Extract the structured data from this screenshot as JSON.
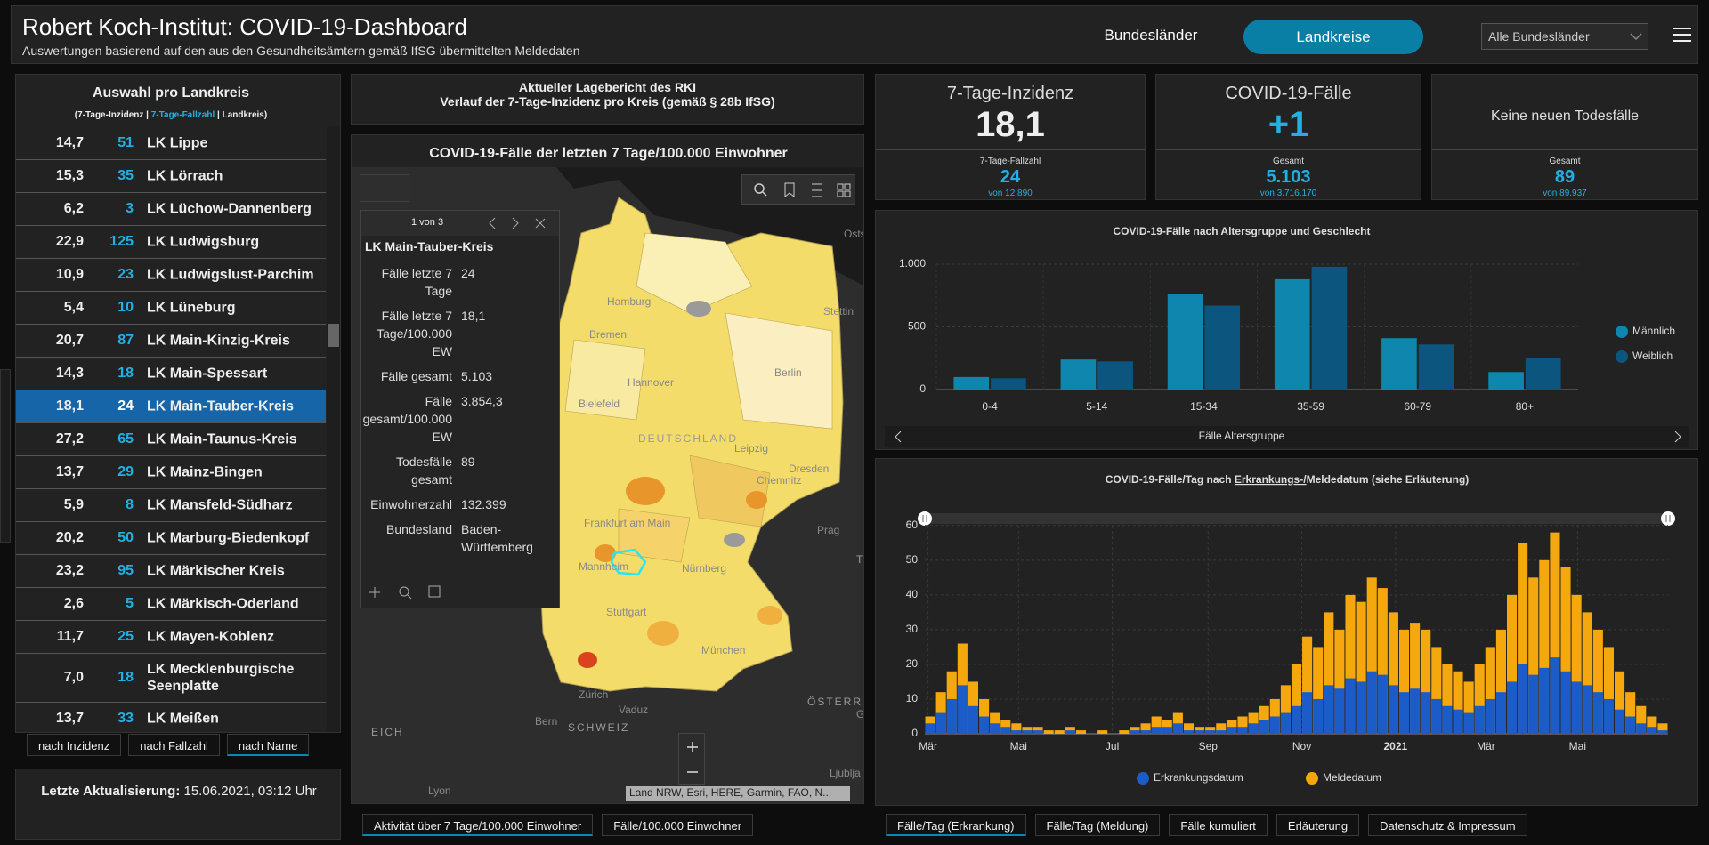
{
  "header": {
    "title": "Robert Koch-Institut: COVID-19-Dashboard",
    "subtitle": "Auswertungen basierend auf den aus den Gesundheitsämtern gemäß IfSG übermittelten Meldedaten",
    "nav": [
      "Bundesländer",
      "Landkreise"
    ],
    "dropdown": "Alle Bundesländer"
  },
  "list": {
    "title": "Auswahl pro Landkreis",
    "legend": [
      "(7-Tage-Inzidenz | ",
      "7-Tage-Fallzahl",
      " | Landkreis)"
    ],
    "selected": 8,
    "rows": [
      [
        "14,7",
        "51",
        "LK Lippe"
      ],
      [
        "15,3",
        "35",
        "LK Lörrach"
      ],
      [
        "6,2",
        "3",
        "LK Lüchow-Dannenberg"
      ],
      [
        "22,9",
        "125",
        "LK Ludwigsburg"
      ],
      [
        "10,9",
        "23",
        "LK Ludwigslust-Parchim"
      ],
      [
        "5,4",
        "10",
        "LK Lüneburg"
      ],
      [
        "20,7",
        "87",
        "LK Main-Kinzig-Kreis"
      ],
      [
        "14,3",
        "18",
        "LK Main-Spessart"
      ],
      [
        "18,1",
        "24",
        "LK Main-Tauber-Kreis"
      ],
      [
        "27,2",
        "65",
        "LK Main-Taunus-Kreis"
      ],
      [
        "13,7",
        "29",
        "LK Mainz-Bingen"
      ],
      [
        "5,9",
        "8",
        "LK Mansfeld-Südharz"
      ],
      [
        "20,2",
        "50",
        "LK Marburg-Biedenkopf"
      ],
      [
        "23,2",
        "95",
        "LK Märkischer Kreis"
      ],
      [
        "2,6",
        "5",
        "LK Märkisch-Oderland"
      ],
      [
        "11,7",
        "25",
        "LK Mayen-Koblenz"
      ],
      [
        "7,0",
        "18",
        "LK Mecklenburgische Seenplatte"
      ],
      [
        "13,7",
        "33",
        "LK Meißen"
      ]
    ],
    "sort_buttons": [
      "nach Inzidenz",
      "nach Fallzahl",
      "nach Name"
    ],
    "active_sort": 2,
    "update_label": "Letzte Aktualisierung:",
    "update_value": "15.06.2021, 03:12 Uhr"
  },
  "report": [
    "Aktueller Lagebericht des RKI",
    "Verlauf der 7-Tage-Inzidenz pro Kreis (gemäß § 28b IfSG)"
  ],
  "map": {
    "title": "COVID-19-Fälle der letzten 7 Tage/100.000 Einwohner",
    "popup": {
      "pager": "1 von 3",
      "title": "LK Main-Tauber-Kreis",
      "fields": [
        [
          "Fälle letzte 7 Tage",
          "24"
        ],
        [
          "Fälle letzte 7 Tage/100.000 EW",
          "18,1"
        ],
        [
          "Fälle gesamt",
          "5.103"
        ],
        [
          "Fälle gesamt/100.000 EW",
          "3.854,3"
        ],
        [
          "Todesfälle gesamt",
          "89"
        ],
        [
          "Einwohnerzahl",
          "132.399"
        ],
        [
          "Bundesland",
          "Baden-Württemberg"
        ]
      ]
    },
    "labels": [
      "Ostsee",
      "Hamburg",
      "Stettin",
      "Bremen",
      "Hannover",
      "Berlin",
      "Bielefeld",
      "DEUTSCHLAND",
      "Leipzig",
      "Dresden",
      "Chemnitz",
      "Frankfurt am Main",
      "Prag",
      "Mannheim",
      "Nürnberg",
      "Stuttgart",
      "München",
      "Zürich",
      "Vaduz",
      "Bern",
      "SCHWEIZ",
      "ÖSTERREICH",
      "TSCHE",
      "EICH",
      "Lyon",
      "Graz",
      "Ljublja"
    ],
    "attribution": "Land NRW, Esri, HERE, Garmin, FAO, N...",
    "tabs": [
      "Aktivität über 7 Tage/100.000 Einwohner",
      "Fälle/100.000 Einwohner"
    ],
    "active_tab": 0
  },
  "kpis": [
    {
      "title": "7-Tage-Inzidenz",
      "big": "18,1",
      "sub_label": "7-Tage-Fallzahl",
      "sub_value": "24",
      "sub_of": "von 12.890"
    },
    {
      "title": "COVID-19-Fälle",
      "big": "+1",
      "sub_label": "Gesamt",
      "sub_value": "5.103",
      "sub_of": "von 3.716.170"
    },
    {
      "title": "Keine neuen Todesfälle",
      "sub_label": "Gesamt",
      "sub_value": "89",
      "sub_of": "von 89.937"
    }
  ],
  "chart_data": [
    {
      "type": "bar",
      "title": "COVID-19-Fälle nach Altersgruppe und Geschlecht",
      "x_label": "Fälle Altersgruppe",
      "categories": [
        "0-4",
        "5-14",
        "15-34",
        "35-59",
        "60-79",
        "80+"
      ],
      "series": [
        {
          "name": "Männlich",
          "color": "#0e86ad",
          "values": [
            100,
            240,
            760,
            880,
            410,
            140
          ]
        },
        {
          "name": "Weiblich",
          "color": "#0b557e",
          "values": [
            90,
            225,
            670,
            980,
            360,
            250
          ]
        }
      ],
      "ylim": [
        0,
        1000
      ],
      "yticks": [
        0,
        500,
        {
          "value": 1000,
          "label": "1.000"
        }
      ],
      "grid": true,
      "legend": "right"
    },
    {
      "type": "bar",
      "title": [
        "COVID-19-Fälle/Tag nach ",
        "Erkrankungs-/",
        "Meldedatum (siehe Erläuterung)"
      ],
      "xlim": [
        0,
        69
      ],
      "xticks": [
        {
          "value": 0.3,
          "label": "Mär"
        },
        {
          "value": 8.7,
          "label": "Mai"
        },
        {
          "value": 17.4,
          "label": "Jul"
        },
        {
          "value": 26.3,
          "label": "Sep"
        },
        {
          "value": 35,
          "label": "Nov"
        },
        {
          "value": 43.7,
          "label": "2021"
        },
        {
          "value": 52.1,
          "label": "Mär"
        },
        {
          "value": 60.6,
          "label": "Mai"
        }
      ],
      "ylim": [
        0,
        62
      ],
      "yticks": [
        0,
        10,
        20,
        30,
        40,
        50,
        60
      ],
      "grid": true,
      "legend": "bottom",
      "series": [
        {
          "name": "Erkrankungsdatum",
          "color": "#1c5cc8",
          "values": [
            3,
            6,
            10,
            14,
            8,
            5,
            3,
            2,
            1,
            1,
            1,
            0,
            0,
            1,
            0,
            0,
            0,
            0,
            0,
            1,
            1,
            2,
            2,
            3,
            1,
            1,
            1,
            1,
            2,
            2,
            3,
            4,
            5,
            6,
            8,
            12,
            10,
            14,
            13,
            16,
            15,
            18,
            17,
            14,
            12,
            13,
            12,
            10,
            8,
            7,
            6,
            8,
            10,
            12,
            15,
            20,
            17,
            19,
            22,
            18,
            15,
            14,
            12,
            10,
            7,
            5,
            3,
            2,
            1
          ]
        },
        {
          "name": "Meldedatum",
          "color": "#f5a70e",
          "values": [
            5,
            12,
            18,
            26,
            15,
            10,
            6,
            4,
            3,
            2,
            2,
            1,
            1,
            2,
            1,
            0,
            1,
            0,
            1,
            2,
            3,
            5,
            4,
            6,
            3,
            2,
            2,
            3,
            4,
            5,
            6,
            8,
            10,
            14,
            20,
            28,
            25,
            35,
            30,
            40,
            38,
            45,
            42,
            35,
            30,
            32,
            30,
            25,
            20,
            18,
            15,
            20,
            25,
            30,
            40,
            55,
            45,
            50,
            58,
            48,
            40,
            35,
            30,
            25,
            18,
            12,
            8,
            5,
            3
          ]
        }
      ],
      "tabs": [
        "Fälle/Tag (Erkrankung)",
        "Fälle/Tag (Meldung)",
        "Fälle kumuliert",
        "Erläuterung",
        "Datenschutz & Impressum"
      ],
      "active_tab": 0
    }
  ]
}
